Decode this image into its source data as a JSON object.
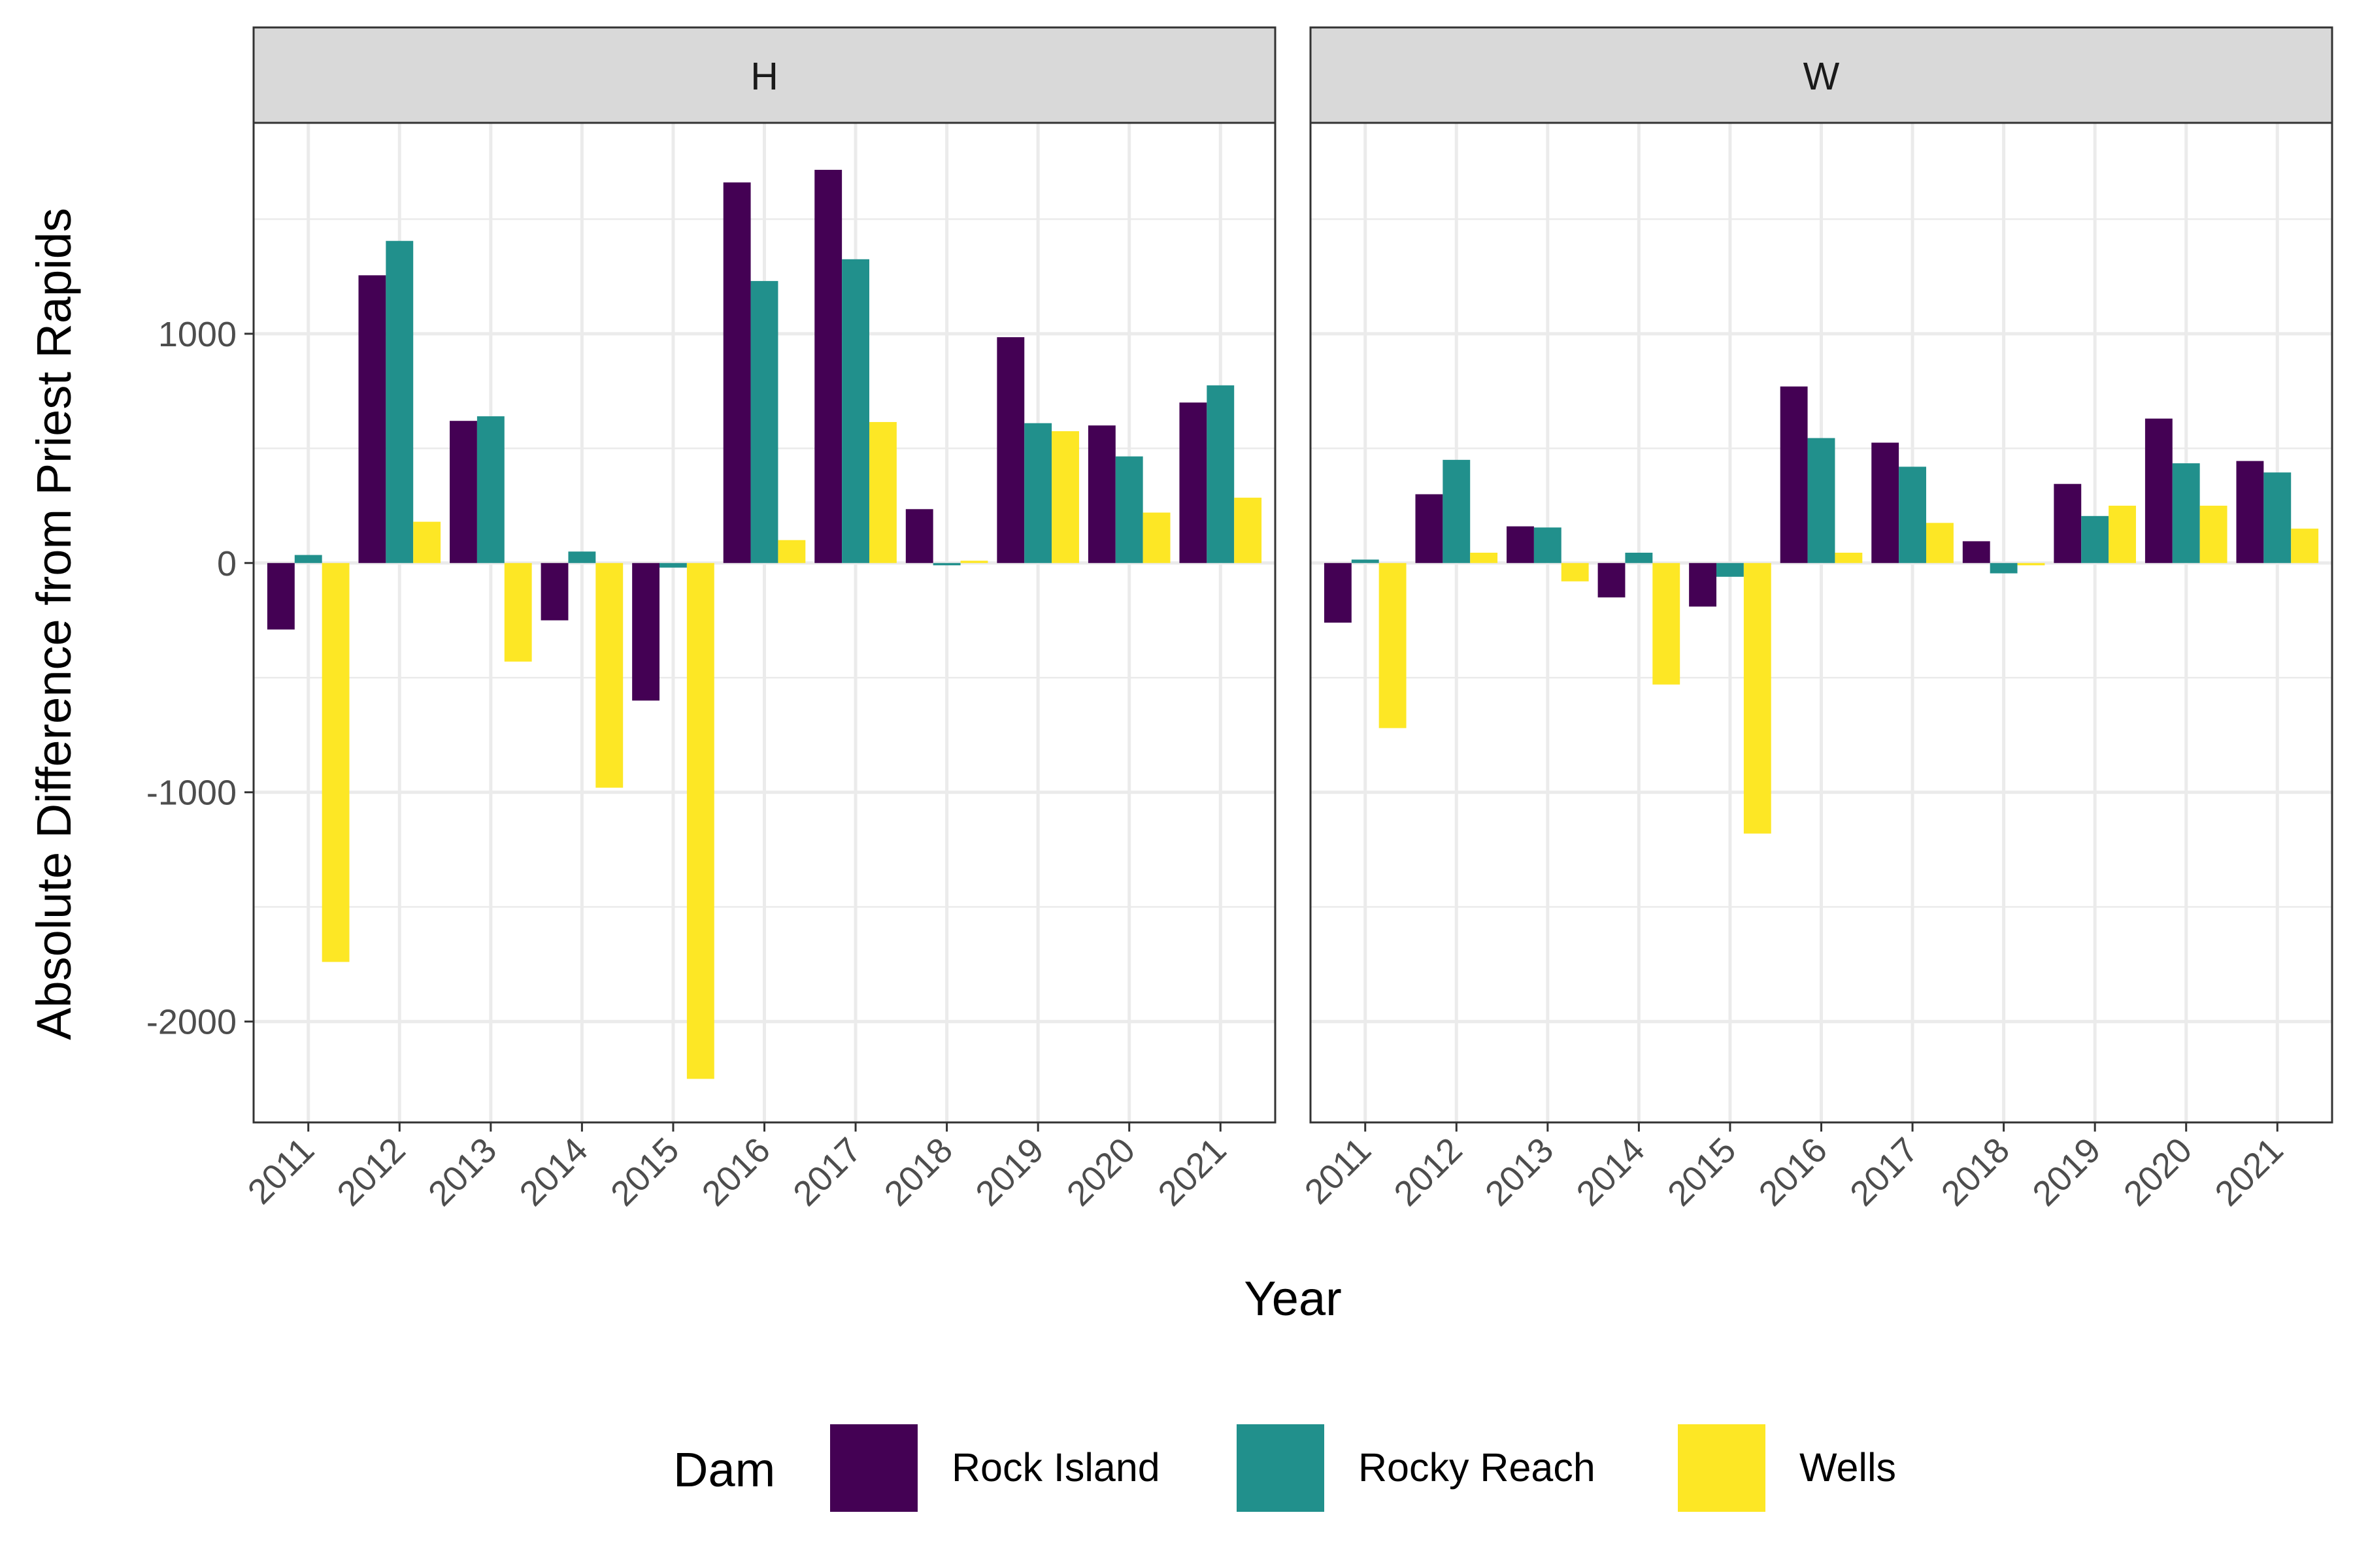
{
  "chart_data": {
    "type": "bar",
    "facet_variable": "",
    "panels": [
      {
        "strip": "H",
        "categories": [
          "2011",
          "2012",
          "2013",
          "2014",
          "2015",
          "2016",
          "2017",
          "2018",
          "2019",
          "2020",
          "2021"
        ],
        "series": [
          {
            "name": "Rock Island",
            "values": [
              -290,
              1255,
              620,
              -250,
              -600,
              1660,
              1715,
              235,
              985,
              600,
              700
            ]
          },
          {
            "name": "Rocky Reach",
            "values": [
              35,
              1405,
              640,
              50,
              -20,
              1230,
              1325,
              -10,
              610,
              465,
              775
            ]
          },
          {
            "name": "Wells",
            "values": [
              -1740,
              180,
              -430,
              -980,
              -2250,
              100,
              615,
              10,
              575,
              220,
              285
            ]
          }
        ]
      },
      {
        "strip": "W",
        "categories": [
          "2011",
          "2012",
          "2013",
          "2014",
          "2015",
          "2016",
          "2017",
          "2018",
          "2019",
          "2020",
          "2021"
        ],
        "series": [
          {
            "name": "Rock Island",
            "values": [
              -260,
              300,
              160,
              -150,
              -190,
              770,
              525,
              95,
              345,
              630,
              445
            ]
          },
          {
            "name": "Rocky Reach",
            "values": [
              15,
              450,
              155,
              45,
              -60,
              545,
              420,
              -45,
              205,
              435,
              395
            ]
          },
          {
            "name": "Wells",
            "values": [
              -720,
              45,
              -80,
              -530,
              -1180,
              45,
              175,
              -10,
              250,
              250,
              150
            ]
          }
        ]
      }
    ],
    "xlabel": "Year",
    "ylabel": "Absolute Difference from Priest Rapids",
    "ylim": [
      -2440,
      1920
    ],
    "yticks": [
      -2000,
      -1000,
      0,
      1000
    ],
    "ytick_labels": [
      "-2000",
      "-1000",
      "0",
      "1000"
    ],
    "grid": true,
    "legend": {
      "title": "Dam",
      "position": "bottom",
      "entries": [
        "Rock Island",
        "Rocky Reach",
        "Wells"
      ]
    },
    "colors": {
      "Rock Island": "#440154",
      "Rocky Reach": "#21908C",
      "Wells": "#FDE725"
    }
  }
}
